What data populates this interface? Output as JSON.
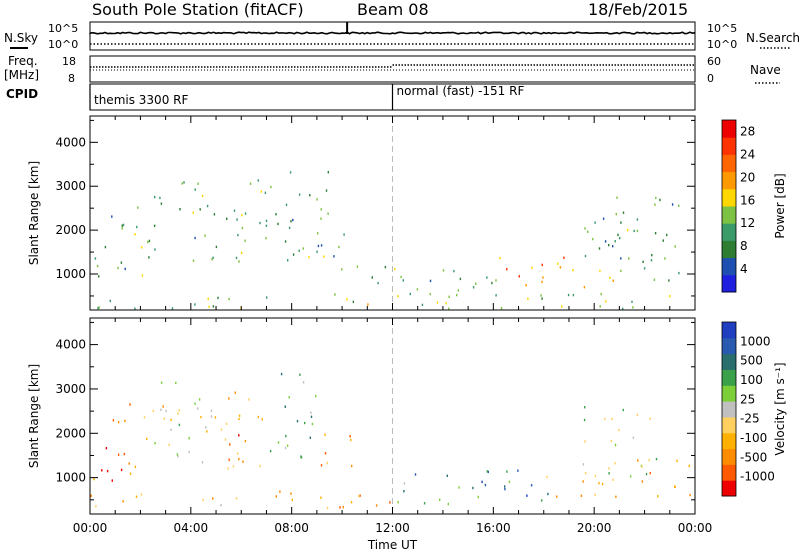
{
  "header": {
    "station": "South Pole Station (fitACF)",
    "beam": "Beam 08",
    "date": "18/Feb/2015"
  },
  "strip_labels": {
    "nsky": "N.Sky",
    "nsearch": "N.Search",
    "freq_line1": "Freq.",
    "freq_line2": "[MHz]",
    "nave": "Nave",
    "cpid": "CPID",
    "nsky_ticks": [
      "10^5",
      "10^0"
    ],
    "nsearch_ticks": [
      "10^5",
      "10^0"
    ],
    "freq_ticks": [
      "18",
      "8"
    ],
    "nave_ticks": [
      "60",
      "0"
    ]
  },
  "cpid_segments": [
    {
      "start_hour": 0,
      "end_hour": 12,
      "label": "themis 3300 RF"
    },
    {
      "start_hour": 12,
      "end_hour": 24,
      "label": "normal (fast) -151 RF"
    }
  ],
  "colors": {
    "power": [
      "#1f1fe0",
      "#1f4fb0",
      "#2e7d32",
      "#3a9a6a",
      "#7dc242",
      "#ffd700",
      "#ff9900",
      "#ff6600",
      "#ff3300",
      "#ee0000"
    ],
    "velocity": [
      "#ee0000",
      "#ff5a00",
      "#ff8c00",
      "#ffb000",
      "#ffd060",
      "#c0c0c0",
      "#7dcf3a",
      "#3aa04a",
      "#2a6e6e",
      "#2a5ab0",
      "#1f3fc0"
    ]
  },
  "chart_data": [
    {
      "type": "heatmap",
      "title": "South Pole Station (fitACF)  Beam 08  18/Feb/2015",
      "xlabel": "Time UT",
      "ylabel": "Slant Range [km]",
      "xticks": [
        "00:00",
        "04:00",
        "08:00",
        "12:00",
        "16:00",
        "20:00",
        "00:00"
      ],
      "xlim_hours": [
        0,
        24
      ],
      "ylim_km": [
        180,
        4600
      ],
      "yticks": [
        1000,
        2000,
        3000,
        4000
      ],
      "colorbar": {
        "label": "Power [dB]",
        "ticks": [
          4,
          8,
          12,
          16,
          20,
          24,
          28
        ],
        "range": [
          0,
          30
        ]
      },
      "scatter_regions": [
        {
          "t0": 0.1,
          "t1": 1.5,
          "r0": 800,
          "r1": 2500,
          "level": 0.3
        },
        {
          "t0": 1.5,
          "t1": 2.8,
          "r0": 900,
          "r1": 2400,
          "level": 0.35
        },
        {
          "t0": 1.8,
          "t1": 3.2,
          "r0": 2400,
          "r1": 3100,
          "level": 0.3
        },
        {
          "t0": 3.5,
          "t1": 4.8,
          "r0": 1200,
          "r1": 3100,
          "level": 0.35
        },
        {
          "t0": 4.6,
          "t1": 6.0,
          "r0": 1200,
          "r1": 2800,
          "level": 0.4
        },
        {
          "t0": 5.8,
          "t1": 8.2,
          "r0": 1400,
          "r1": 3200,
          "level": 0.4
        },
        {
          "t0": 7.5,
          "t1": 9.5,
          "r0": 1300,
          "r1": 3400,
          "level": 0.35
        },
        {
          "t0": 9.0,
          "t1": 10.8,
          "r0": 1100,
          "r1": 2000,
          "level": 0.35
        },
        {
          "t0": 10.5,
          "t1": 12.0,
          "r0": 700,
          "r1": 1200,
          "level": 0.3
        },
        {
          "t0": 12.0,
          "t1": 15.0,
          "r0": 400,
          "r1": 1200,
          "level": 0.35
        },
        {
          "t0": 15.0,
          "t1": 16.2,
          "r0": 500,
          "r1": 1500,
          "level": 0.4
        },
        {
          "t0": 16.2,
          "t1": 18.8,
          "r0": 500,
          "r1": 1400,
          "level": 0.7
        },
        {
          "t0": 18.8,
          "t1": 20.8,
          "r0": 400,
          "r1": 1100,
          "level": 0.55
        },
        {
          "t0": 19.5,
          "t1": 21.5,
          "r0": 1000,
          "r1": 2500,
          "level": 0.3
        },
        {
          "t0": 20.8,
          "t1": 23.8,
          "r0": 800,
          "r1": 2800,
          "level": 0.35
        },
        {
          "t0": 0.0,
          "t1": 24.0,
          "r0": 200,
          "r1": 550,
          "level": 0.45
        }
      ]
    },
    {
      "type": "heatmap",
      "xlabel": "Time UT",
      "ylabel": "Slant Range [km]",
      "xticks": [
        "00:00",
        "04:00",
        "08:00",
        "12:00",
        "16:00",
        "20:00",
        "00:00"
      ],
      "xlim_hours": [
        0,
        24
      ],
      "ylim_km": [
        180,
        4600
      ],
      "yticks": [
        1000,
        2000,
        3000,
        4000
      ],
      "colorbar": {
        "label": "Velocity [m s⁻¹]",
        "ticks": [
          1000,
          500,
          100,
          25,
          -25,
          -100,
          -500,
          -1000
        ],
        "range": [
          -1000,
          1000
        ]
      },
      "scatter_regions": [
        {
          "t0": 0.1,
          "t1": 2.0,
          "r0": 900,
          "r1": 2400,
          "level": 0.2
        },
        {
          "t0": 1.0,
          "t1": 3.0,
          "r0": 1800,
          "r1": 2700,
          "level": 0.3
        },
        {
          "t0": 2.5,
          "t1": 4.0,
          "r0": 1400,
          "r1": 3200,
          "level": 0.45
        },
        {
          "t0": 3.5,
          "t1": 5.5,
          "r0": 1300,
          "r1": 2900,
          "level": 0.5
        },
        {
          "t0": 5.0,
          "t1": 7.0,
          "r0": 1200,
          "r1": 3100,
          "level": 0.25
        },
        {
          "t0": 7.0,
          "t1": 9.0,
          "r0": 1300,
          "r1": 3400,
          "level": 0.65
        },
        {
          "t0": 8.5,
          "t1": 10.5,
          "r0": 1200,
          "r1": 2000,
          "level": 0.25
        },
        {
          "t0": 12.0,
          "t1": 15.5,
          "r0": 400,
          "r1": 1100,
          "level": 0.7
        },
        {
          "t0": 15.5,
          "t1": 19.0,
          "r0": 400,
          "r1": 1200,
          "level": 0.8
        },
        {
          "t0": 18.0,
          "t1": 21.0,
          "r0": 450,
          "r1": 1100,
          "level": 0.25
        },
        {
          "t0": 19.5,
          "t1": 22.5,
          "r0": 1000,
          "r1": 2700,
          "level": 0.55
        },
        {
          "t0": 21.5,
          "t1": 23.9,
          "r0": 500,
          "r1": 1400,
          "level": 0.25
        },
        {
          "t0": 0.0,
          "t1": 12.0,
          "r0": 300,
          "r1": 700,
          "level": 0.3
        }
      ]
    }
  ]
}
